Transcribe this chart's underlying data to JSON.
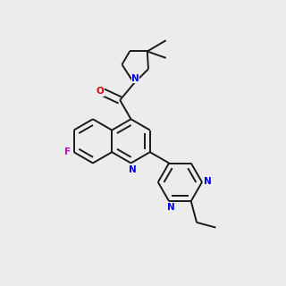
{
  "bg_color": "#ececec",
  "bond_color": "#1a1a1a",
  "N_color": "#0000ee",
  "O_color": "#dd0000",
  "F_color": "#cc00cc",
  "lw": 1.4,
  "dbo": 0.013,
  "bl": 0.082
}
